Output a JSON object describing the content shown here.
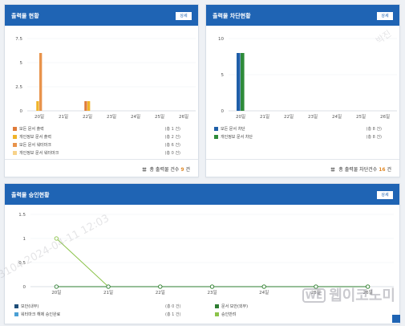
{
  "cards": {
    "output": {
      "title": "출력물 현황",
      "detail_label": "상세",
      "legend": [
        {
          "label": "모든 문서 출력",
          "count": "(총 1 건)",
          "color": "#e07b39"
        },
        {
          "label": "개인정보 문서 출력",
          "count": "(총 2 건)",
          "color": "#f0b429"
        },
        {
          "label": "모든 문서 워터마크",
          "count": "(총 6 건)",
          "color": "#e8934b"
        },
        {
          "label": "개인정보 문서 워터마크",
          "count": "(총 0 건)",
          "color": "#f7d28a"
        }
      ],
      "footer_prefix": "총 출력물 건수",
      "footer_count": "9",
      "footer_suffix": "건"
    },
    "block": {
      "title": "출력물 차단현황",
      "detail_label": "상세",
      "legend": [
        {
          "label": "모든 문서 차단",
          "count": "(총 8 건)",
          "color": "#1f5fa8"
        },
        {
          "label": "개인정보 문서 차단",
          "count": "(총 8 건)",
          "color": "#2e8b3a"
        }
      ],
      "footer_prefix": "총 출력물 차단건수",
      "footer_count": "16",
      "footer_suffix": "건"
    },
    "approval": {
      "title": "출력물 승인현황",
      "detail_label": "상세",
      "legend": [
        {
          "label": "보안(내부)",
          "count": "(총 0 건)",
          "color": "#1e4d78"
        },
        {
          "label": "문서 보안(외부)",
          "count": "",
          "color": "#2e7d32"
        },
        {
          "label": "워터마크 해제 승인완료",
          "count": "(총 1 건)",
          "color": "#4a9fd4"
        },
        {
          "label": "승인반려",
          "count": "",
          "color": "#8bc34a"
        }
      ]
    }
  },
  "watermarks": {
    "user": "박진",
    "stamp": "3104 2024-04-11 12:03",
    "brand_logo": "WE",
    "brand_text": "웹이코노미"
  },
  "chart_data": [
    {
      "type": "bar",
      "categories": [
        "20일",
        "21일",
        "22일",
        "23일",
        "24일",
        "25일",
        "26일"
      ],
      "ylim": [
        0,
        7.5
      ],
      "yticks": [
        "0",
        "2.5",
        "5",
        "7.5"
      ],
      "series": [
        {
          "name": "모든 문서 출력",
          "color": "#e07b39",
          "values": [
            0,
            0,
            1,
            0,
            0,
            0,
            0
          ]
        },
        {
          "name": "개인정보 문서 출력",
          "color": "#f0b429",
          "values": [
            1,
            0,
            1,
            0,
            0,
            0,
            0
          ]
        },
        {
          "name": "모든 문서 워터마크",
          "color": "#e8934b",
          "values": [
            6,
            0,
            0,
            0,
            0,
            0,
            0
          ]
        },
        {
          "name": "개인정보 문서 워터마크",
          "color": "#f7d28a",
          "values": [
            0,
            0,
            0,
            0,
            0,
            0,
            0
          ]
        }
      ]
    },
    {
      "type": "bar",
      "categories": [
        "20일",
        "21일",
        "22일",
        "23일",
        "24일",
        "25일",
        "26일"
      ],
      "ylim": [
        0,
        10
      ],
      "yticks": [
        "0",
        "5",
        "10"
      ],
      "series": [
        {
          "name": "모든 문서 차단",
          "color": "#1f5fa8",
          "values": [
            8,
            0,
            0,
            0,
            0,
            0,
            0
          ]
        },
        {
          "name": "개인정보 문서 차단",
          "color": "#2e8b3a",
          "values": [
            8,
            0,
            0,
            0,
            0,
            0,
            0
          ]
        }
      ]
    },
    {
      "type": "line",
      "categories": [
        "20일",
        "21일",
        "22일",
        "23일",
        "24일",
        "25일",
        "26일"
      ],
      "ylim": [
        0,
        1.5
      ],
      "yticks": [
        "0",
        "0.5",
        "1",
        "1.5"
      ],
      "series": [
        {
          "name": "워터마크 해제 승인완료",
          "color": "#8bc34a",
          "values": [
            1,
            0,
            0,
            0,
            0,
            0,
            0
          ]
        },
        {
          "name": "보안(내부)",
          "color": "#2e7d32",
          "values": [
            0,
            0,
            0,
            0,
            0,
            0,
            0
          ]
        }
      ]
    }
  ]
}
